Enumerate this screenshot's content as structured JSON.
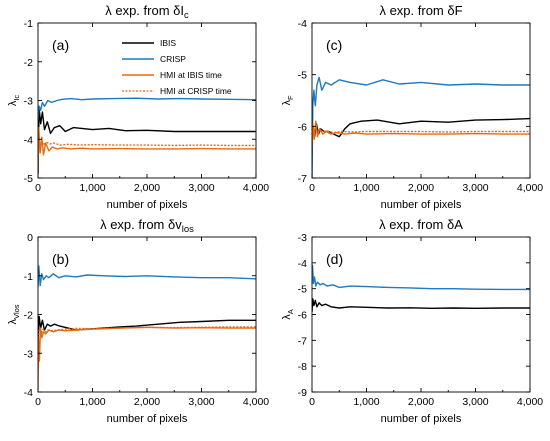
{
  "colors": {
    "IBIS": "#000000",
    "CRISP": "#1f7ac1",
    "HMI_IBIS": "#e86a10",
    "HMI_CRISP": "#e86a10"
  },
  "legend": {
    "items": [
      {
        "key": "IBIS",
        "label": "IBIS",
        "dashed": false
      },
      {
        "key": "CRISP",
        "label": "CRISP",
        "dashed": false
      },
      {
        "key": "HMI_IBIS",
        "label": "HMI at IBIS time",
        "dashed": false
      },
      {
        "key": "HMI_CRISP",
        "label": "HMI at CRISP time",
        "dashed": true
      }
    ]
  },
  "chart_data": [
    {
      "type": "line",
      "panel": "(a)",
      "title_main": "λ exp. from δI",
      "title_sub": "c",
      "xlabel": "number of pixels",
      "ylabel_main": "λ",
      "ylabel_sub": "Ic",
      "xlim": [
        0,
        4000
      ],
      "ylim": [
        -5,
        -1
      ],
      "xticks": [
        0,
        1000,
        2000,
        3000,
        4000
      ],
      "xtick_labels": [
        "0",
        "1,000",
        "2,000",
        "3,000",
        "4,000"
      ],
      "yticks": [
        -5,
        -4,
        -3,
        -2,
        -1
      ],
      "ytick_labels": [
        "-5",
        "-4",
        "-3",
        "-2",
        "-1"
      ],
      "series": [
        {
          "name": "IBIS",
          "x": [
            0,
            20,
            50,
            80,
            120,
            170,
            230,
            300,
            400,
            500,
            650,
            800,
            1000,
            1300,
            1600,
            2000,
            2500,
            3000,
            3500,
            4000
          ],
          "y": [
            -4.9,
            -3.2,
            -3.6,
            -3.3,
            -3.75,
            -3.55,
            -3.85,
            -3.7,
            -3.65,
            -3.8,
            -3.7,
            -3.72,
            -3.75,
            -3.72,
            -3.78,
            -3.77,
            -3.8,
            -3.8,
            -3.8,
            -3.8
          ]
        },
        {
          "name": "CRISP",
          "x": [
            0,
            20,
            50,
            80,
            120,
            180,
            250,
            350,
            450,
            600,
            800,
            1000,
            1400,
            1800,
            2200,
            2600,
            3000,
            3500,
            4000
          ],
          "y": [
            -3.5,
            -3.15,
            -3.25,
            -3.05,
            -3.15,
            -3.0,
            -3.05,
            -3.0,
            -2.97,
            -2.95,
            -2.98,
            -2.96,
            -2.95,
            -2.94,
            -2.96,
            -2.95,
            -2.96,
            -2.97,
            -2.98
          ]
        },
        {
          "name": "HMI at IBIS time",
          "x": [
            0,
            15,
            40,
            70,
            100,
            140,
            200,
            260,
            350,
            450,
            600,
            800,
            1000,
            1500,
            2000,
            2500,
            3000,
            3500,
            4000
          ],
          "y": [
            -4.75,
            -3.7,
            -4.35,
            -3.95,
            -4.4,
            -4.1,
            -4.3,
            -4.2,
            -4.25,
            -4.22,
            -4.25,
            -4.23,
            -4.25,
            -4.24,
            -4.25,
            -4.25,
            -4.24,
            -4.25,
            -4.25
          ]
        },
        {
          "name": "HMI at CRISP time",
          "x": [
            0,
            15,
            40,
            70,
            100,
            150,
            220,
            300,
            400,
            550,
            750,
            1000,
            1500,
            2000,
            2500,
            3000,
            3500,
            4000
          ],
          "y": [
            -4.6,
            -4.0,
            -4.2,
            -4.05,
            -4.15,
            -4.08,
            -4.12,
            -4.1,
            -4.15,
            -4.13,
            -4.15,
            -4.14,
            -4.15,
            -4.15,
            -4.16,
            -4.15,
            -4.16,
            -4.16
          ]
        }
      ]
    },
    {
      "type": "line",
      "panel": "(c)",
      "title_main": "λ exp. from δF",
      "title_sub": "",
      "xlabel": "number of pixels",
      "ylabel_main": "λ",
      "ylabel_sub": "F",
      "xlim": [
        0,
        4000
      ],
      "ylim": [
        -7,
        -4
      ],
      "xticks": [
        0,
        1000,
        2000,
        3000,
        4000
      ],
      "xtick_labels": [
        "0",
        "1,000",
        "2,000",
        "3,000",
        "4,000"
      ],
      "yticks": [
        -7,
        -6,
        -5,
        -4
      ],
      "ytick_labels": [
        "-7",
        "-6",
        "-5",
        "-4"
      ],
      "series": [
        {
          "name": "IBIS",
          "x": [
            0,
            20,
            50,
            80,
            120,
            160,
            220,
            300,
            400,
            500,
            600,
            700,
            900,
            1200,
            1600,
            2000,
            2500,
            3000,
            3500,
            4000
          ],
          "y": [
            -6.3,
            -6.0,
            -6.2,
            -5.95,
            -6.15,
            -6.05,
            -6.1,
            -6.1,
            -6.15,
            -6.2,
            -6.05,
            -5.95,
            -5.9,
            -5.88,
            -5.95,
            -5.9,
            -5.92,
            -5.88,
            -5.87,
            -5.85
          ]
        },
        {
          "name": "CRISP",
          "x": [
            0,
            15,
            35,
            60,
            90,
            130,
            180,
            250,
            350,
            500,
            700,
            1000,
            1300,
            1600,
            2000,
            2500,
            3000,
            3500,
            4000
          ],
          "y": [
            -7.0,
            -5.6,
            -5.3,
            -5.6,
            -5.2,
            -5.05,
            -5.3,
            -5.15,
            -5.2,
            -5.1,
            -5.15,
            -5.2,
            -5.1,
            -5.18,
            -5.15,
            -5.2,
            -5.18,
            -5.2,
            -5.2
          ]
        },
        {
          "name": "HMI at IBIS time",
          "x": [
            0,
            15,
            40,
            70,
            100,
            140,
            200,
            260,
            350,
            450,
            600,
            800,
            1000,
            1500,
            2000,
            2500,
            3000,
            3500,
            4000
          ],
          "y": [
            -6.4,
            -5.95,
            -6.25,
            -5.9,
            -6.2,
            -6.05,
            -6.15,
            -6.1,
            -6.15,
            -6.12,
            -6.15,
            -6.13,
            -6.15,
            -6.14,
            -6.15,
            -6.15,
            -6.14,
            -6.15,
            -6.15
          ]
        },
        {
          "name": "HMI at CRISP time",
          "x": [
            0,
            15,
            40,
            70,
            100,
            150,
            220,
            300,
            400,
            550,
            750,
            1000,
            1500,
            2000,
            2500,
            3000,
            3500,
            4000
          ],
          "y": [
            -6.3,
            -6.0,
            -6.15,
            -6.05,
            -6.1,
            -6.08,
            -6.1,
            -6.1,
            -6.12,
            -6.1,
            -6.11,
            -6.1,
            -6.1,
            -6.1,
            -6.11,
            -6.1,
            -6.1,
            -6.1
          ]
        }
      ]
    },
    {
      "type": "line",
      "panel": "(b)",
      "title_main": "λ exp. from δv",
      "title_sub": "los",
      "xlabel": "number of pixels",
      "ylabel_main": "λ",
      "ylabel_sub": "Vlos",
      "xlim": [
        0,
        4000
      ],
      "ylim": [
        -4,
        0
      ],
      "xticks": [
        0,
        1000,
        2000,
        3000,
        4000
      ],
      "xtick_labels": [
        "0",
        "1,000",
        "2,000",
        "3,000",
        "4,000"
      ],
      "yticks": [
        -4,
        -3,
        -2,
        -1,
        0
      ],
      "ytick_labels": [
        "-4",
        "-3",
        "-2",
        "-1",
        "0"
      ],
      "series": [
        {
          "name": "IBIS",
          "x": [
            0,
            20,
            50,
            80,
            120,
            170,
            230,
            300,
            400,
            550,
            700,
            900,
            1200,
            1500,
            1800,
            2200,
            2600,
            3000,
            3500,
            4000
          ],
          "y": [
            -2.7,
            -2.05,
            -2.35,
            -2.15,
            -2.4,
            -2.25,
            -2.3,
            -2.25,
            -2.3,
            -2.35,
            -2.4,
            -2.38,
            -2.35,
            -2.32,
            -2.3,
            -2.25,
            -2.2,
            -2.18,
            -2.15,
            -2.15
          ]
        },
        {
          "name": "CRISP",
          "x": [
            0,
            15,
            40,
            70,
            100,
            150,
            200,
            280,
            380,
            500,
            700,
            900,
            1200,
            1600,
            2000,
            2500,
            3000,
            3500,
            4000
          ],
          "y": [
            -1.3,
            -0.75,
            -1.25,
            -0.95,
            -1.1,
            -1.0,
            -1.05,
            -0.95,
            -1.05,
            -1.0,
            -1.03,
            -0.98,
            -1.0,
            -1.02,
            -1.0,
            -1.03,
            -1.05,
            -1.05,
            -1.08
          ]
        },
        {
          "name": "HMI at IBIS time",
          "x": [
            0,
            10,
            25,
            45,
            70,
            100,
            140,
            200,
            280,
            380,
            500,
            700,
            1000,
            1500,
            2000,
            2500,
            3000,
            3500,
            4000
          ],
          "y": [
            -3.9,
            -2.6,
            -3.2,
            -2.35,
            -2.6,
            -2.45,
            -2.5,
            -2.4,
            -2.45,
            -2.4,
            -2.42,
            -2.4,
            -2.38,
            -2.35,
            -2.33,
            -2.35,
            -2.34,
            -2.35,
            -2.35
          ]
        },
        {
          "name": "HMI at CRISP time",
          "x": [
            0,
            15,
            35,
            60,
            90,
            130,
            180,
            250,
            350,
            500,
            700,
            1000,
            1500,
            2000,
            2500,
            3000,
            3500,
            4000
          ],
          "y": [
            -2.8,
            -2.45,
            -2.35,
            -2.5,
            -2.38,
            -2.45,
            -2.4,
            -2.42,
            -2.4,
            -2.38,
            -2.36,
            -2.37,
            -2.35,
            -2.33,
            -2.34,
            -2.33,
            -2.32,
            -2.32
          ]
        }
      ]
    },
    {
      "type": "line",
      "panel": "(d)",
      "title_main": "λ exp. from δA",
      "title_sub": "",
      "xlabel": "number of pixels",
      "ylabel_main": "λ",
      "ylabel_sub": "A",
      "xlim": [
        0,
        4000
      ],
      "ylim": [
        -9,
        -3
      ],
      "xticks": [
        0,
        1000,
        2000,
        3000,
        4000
      ],
      "xtick_labels": [
        "0",
        "1,000",
        "2,000",
        "3,000",
        "4,000"
      ],
      "yticks": [
        -9,
        -8,
        -7,
        -6,
        -5,
        -4,
        -3
      ],
      "ytick_labels": [
        "-9",
        "-8",
        "-7",
        "-6",
        "-5",
        "-4",
        "-3"
      ],
      "series": [
        {
          "name": "IBIS",
          "x": [
            0,
            15,
            35,
            60,
            90,
            130,
            180,
            250,
            350,
            500,
            700,
            1000,
            1400,
            1800,
            2200,
            2600,
            3000,
            3500,
            4000
          ],
          "y": [
            -5.9,
            -5.4,
            -5.65,
            -5.45,
            -5.7,
            -5.55,
            -5.65,
            -5.6,
            -5.7,
            -5.75,
            -5.7,
            -5.72,
            -5.75,
            -5.74,
            -5.76,
            -5.75,
            -5.76,
            -5.75,
            -5.75
          ]
        },
        {
          "name": "CRISP",
          "x": [
            0,
            10,
            25,
            45,
            70,
            100,
            150,
            200,
            280,
            380,
            500,
            700,
            1000,
            1400,
            1800,
            2200,
            2600,
            3000,
            3500,
            4000
          ],
          "y": [
            -4.3,
            -4.1,
            -4.8,
            -4.55,
            -4.9,
            -4.75,
            -4.85,
            -4.8,
            -4.9,
            -4.85,
            -4.95,
            -4.9,
            -4.92,
            -4.95,
            -4.97,
            -5.0,
            -5.0,
            -5.02,
            -5.03,
            -5.03
          ]
        }
      ]
    }
  ]
}
